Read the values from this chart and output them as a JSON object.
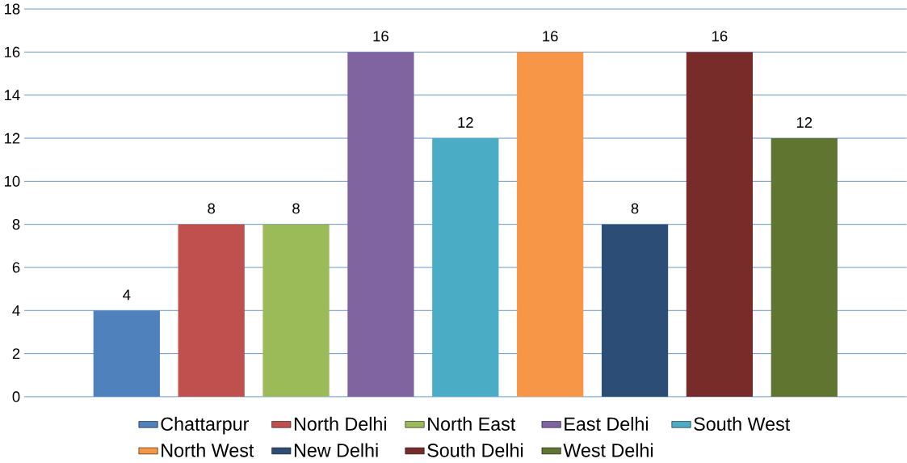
{
  "chart_data": {
    "type": "bar",
    "categories": [
      null
    ],
    "series": [
      {
        "name": "Chattarpur",
        "color": "#4f81bd",
        "values": [
          4
        ]
      },
      {
        "name": "North Delhi",
        "color": "#c0504d",
        "values": [
          8
        ]
      },
      {
        "name": "North East",
        "color": "#9bbb59",
        "values": [
          8
        ]
      },
      {
        "name": "East Delhi",
        "color": "#8064a2",
        "values": [
          16
        ]
      },
      {
        "name": "South West",
        "color": "#4bacc6",
        "values": [
          12
        ]
      },
      {
        "name": "North West",
        "color": "#f79646",
        "values": [
          16
        ]
      },
      {
        "name": "New Delhi",
        "color": "#2c4d75",
        "values": [
          8
        ]
      },
      {
        "name": "South Delhi",
        "color": "#772c2a",
        "values": [
          16
        ]
      },
      {
        "name": "West Delhi",
        "color": "#5f7530",
        "values": [
          12
        ]
      }
    ],
    "ylim": [
      0,
      18
    ],
    "yticks": [
      0,
      2,
      4,
      6,
      8,
      10,
      12,
      14,
      16,
      18
    ],
    "grid": "y",
    "legend": "bottom",
    "data_labels": true
  }
}
